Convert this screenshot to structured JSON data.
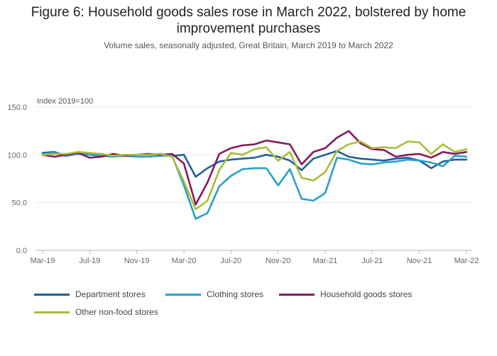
{
  "chart_data": {
    "type": "line",
    "title": "Figure 6: Household goods sales rose in March 2022, bolstered by home improvement purchases",
    "subtitle": "Volume sales, seasonally adjusted, Great Britain, March 2019 to March 2022",
    "ylabel": "Index 2019=100",
    "ylim": [
      0,
      150
    ],
    "yticks": [
      "0.0",
      "50.0",
      "100.0",
      "150.0"
    ],
    "xticks": [
      "Mar-19",
      "Jul-19",
      "Nov-19",
      "Mar-20",
      "Jul-20",
      "Nov-20",
      "Mar-21",
      "Jul-21",
      "Nov-21",
      "Mar-22"
    ],
    "grid": true,
    "legend_position": "bottom",
    "x": [
      "Mar-19",
      "Apr-19",
      "May-19",
      "Jun-19",
      "Jul-19",
      "Aug-19",
      "Sep-19",
      "Oct-19",
      "Nov-19",
      "Dec-19",
      "Jan-20",
      "Feb-20",
      "Mar-20",
      "Apr-20",
      "May-20",
      "Jun-20",
      "Jul-20",
      "Aug-20",
      "Sep-20",
      "Oct-20",
      "Nov-20",
      "Dec-20",
      "Jan-21",
      "Feb-21",
      "Mar-21",
      "Apr-21",
      "May-21",
      "Jun-21",
      "Jul-21",
      "Aug-21",
      "Sep-21",
      "Oct-21",
      "Nov-21",
      "Dec-21",
      "Jan-22",
      "Feb-22",
      "Mar-22"
    ],
    "series": [
      {
        "name": "Department stores",
        "color": "#206095",
        "values": [
          102,
          103,
          99,
          101,
          101,
          99,
          99,
          100,
          100,
          100,
          101,
          99,
          100,
          77,
          86,
          93,
          95,
          96,
          97,
          100,
          98,
          94,
          84,
          96,
          100,
          104,
          98,
          96,
          95,
          94,
          96,
          97,
          94,
          86,
          93,
          95,
          95
        ]
      },
      {
        "name": "Clothing stores",
        "color": "#27a0cc",
        "values": [
          101,
          102,
          99,
          101,
          100,
          99,
          98,
          99,
          98,
          98,
          99,
          99,
          68,
          33,
          39,
          67,
          78,
          85,
          86,
          86,
          68,
          85,
          54,
          52,
          60,
          97,
          95,
          91,
          90,
          92,
          93,
          95,
          94,
          92,
          88,
          99,
          98
        ]
      },
      {
        "name": "Household goods stores",
        "color": "#871a5b",
        "values": [
          100,
          98,
          100,
          102,
          97,
          98,
          101,
          99,
          100,
          101,
          100,
          101,
          91,
          48,
          71,
          101,
          107,
          110,
          111,
          115,
          113,
          111,
          90,
          103,
          107,
          118,
          125,
          112,
          106,
          105,
          98,
          100,
          101,
          97,
          103,
          101,
          103
        ]
      },
      {
        "name": "Other non-food stores",
        "color": "#a8bd3a",
        "values": [
          100,
          101,
          101,
          103,
          102,
          101,
          99,
          100,
          100,
          100,
          101,
          98,
          72,
          43,
          52,
          84,
          102,
          100,
          106,
          108,
          94,
          103,
          76,
          73,
          82,
          104,
          111,
          114,
          107,
          108,
          107,
          114,
          113,
          101,
          111,
          103,
          106
        ]
      }
    ]
  }
}
